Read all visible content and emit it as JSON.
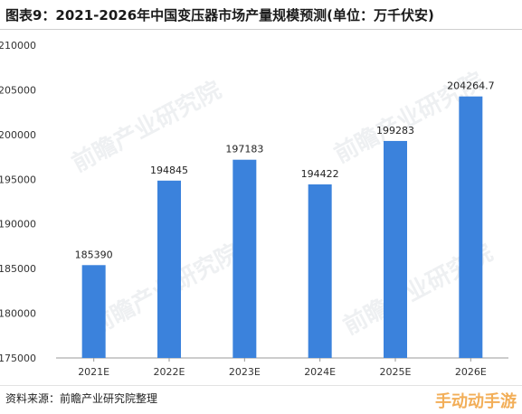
{
  "title": "图表9：2021-2026年中国变压器市场产量规模预测(单位：万千伏安)",
  "source": "资料来源：前瞻产业研究院整理",
  "watermark": "前瞻产业研究院",
  "corner_watermark": "手动动手游",
  "chart_data": {
    "type": "bar",
    "categories": [
      "2021E",
      "2022E",
      "2023E",
      "2024E",
      "2025E",
      "2026E"
    ],
    "values": [
      185390,
      194845,
      197183,
      194422,
      199283,
      204264.7
    ],
    "value_labels": [
      "185390",
      "194845",
      "197183",
      "194422",
      "199283",
      "204264.7"
    ],
    "y_ticks": [
      "175000",
      "180000",
      "185000",
      "190000",
      "195000",
      "200000",
      "205000",
      "210000"
    ],
    "ylim": [
      175000,
      210000
    ],
    "bar_color": "#3b82dc",
    "grid": false,
    "legend": "none"
  }
}
